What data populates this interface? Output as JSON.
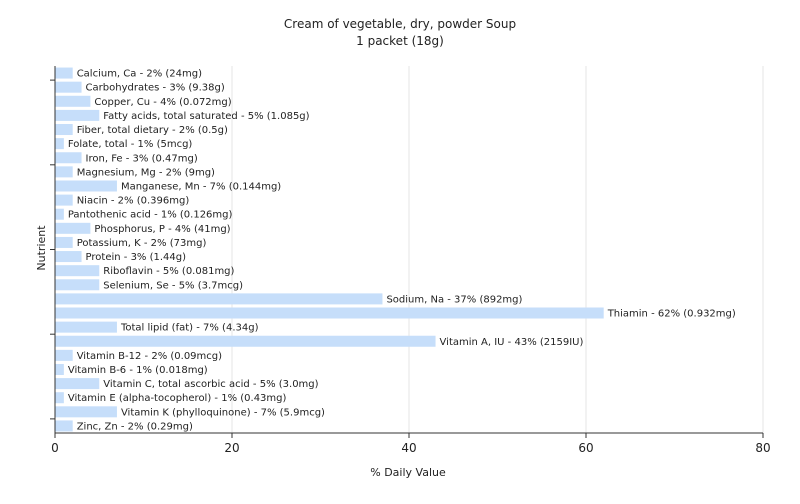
{
  "chart_data": {
    "type": "bar",
    "orientation": "horizontal",
    "title": "Cream of vegetable, dry, powder Soup",
    "subtitle": "1 packet (18g)",
    "xlabel": "% Daily Value",
    "ylabel": "Nutrient",
    "xlim": [
      0,
      80
    ],
    "xticks": [
      "0",
      "20",
      "40",
      "60",
      "80"
    ],
    "grid": true,
    "bar_color": "#c6defa",
    "categories": [
      "Calcium, Ca",
      "Carbohydrates",
      "Copper, Cu",
      "Fatty acids, total saturated",
      "Fiber, total dietary",
      "Folate, total",
      "Iron, Fe",
      "Magnesium, Mg",
      "Manganese, Mn",
      "Niacin",
      "Pantothenic acid",
      "Phosphorus, P",
      "Potassium, K",
      "Protein",
      "Riboflavin",
      "Selenium, Se",
      "Sodium, Na",
      "Thiamin",
      "Total lipid (fat)",
      "Vitamin A, IU",
      "Vitamin B-12",
      "Vitamin B-6",
      "Vitamin C, total ascorbic acid",
      "Vitamin E (alpha-tocopherol)",
      "Vitamin K (phylloquinone)",
      "Zinc, Zn"
    ],
    "values": [
      2,
      3,
      4,
      5,
      2,
      1,
      3,
      2,
      7,
      2,
      1,
      4,
      2,
      3,
      5,
      5,
      37,
      62,
      7,
      43,
      2,
      1,
      5,
      1,
      7,
      2
    ],
    "labels": [
      "Calcium, Ca - 2% (24mg)",
      "Carbohydrates - 3% (9.38g)",
      "Copper, Cu - 4% (0.072mg)",
      "Fatty acids, total saturated - 5% (1.085g)",
      "Fiber, total dietary - 2% (0.5g)",
      "Folate, total - 1% (5mcg)",
      "Iron, Fe - 3% (0.47mg)",
      "Magnesium, Mg - 2% (9mg)",
      "Manganese, Mn - 7% (0.144mg)",
      "Niacin - 2% (0.396mg)",
      "Pantothenic acid - 1% (0.126mg)",
      "Phosphorus, P - 4% (41mg)",
      "Potassium, K - 2% (73mg)",
      "Protein - 3% (1.44g)",
      "Riboflavin - 5% (0.081mg)",
      "Selenium, Se - 5% (3.7mcg)",
      "Sodium, Na - 37% (892mg)",
      "Thiamin - 62% (0.932mg)",
      "Total lipid (fat) - 7% (4.34g)",
      "Vitamin A, IU - 43% (2159IU)",
      "Vitamin B-12 - 2% (0.09mcg)",
      "Vitamin B-6 - 1% (0.018mg)",
      "Vitamin C, total ascorbic acid - 5% (3.0mg)",
      "Vitamin E (alpha-tocopherol) - 1% (0.43mg)",
      "Vitamin K (phylloquinone) - 7% (5.9mcg)",
      "Zinc, Zn - 2% (0.29mg)"
    ]
  }
}
